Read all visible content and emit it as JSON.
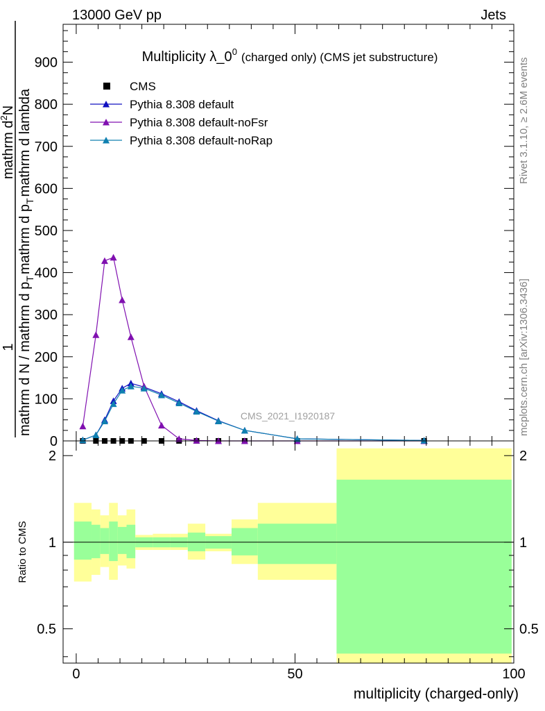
{
  "header": {
    "left": "13000 GeV pp",
    "right": "Jets"
  },
  "side_labels": {
    "top": "Rivet 3.1.10, ≥ 2.6M events",
    "bottom": "mcplots.cern.ch [arXiv:1306.3436]"
  },
  "colors": {
    "cms": "#000000",
    "default": "#1010c0",
    "noFsr": "#8010b0",
    "noRap": "#1080b0",
    "band_inner": "#99ff99",
    "band_outer": "#ffff99"
  },
  "chart_data": [
    {
      "type": "line",
      "title": "Multiplicity λ_0",
      "title_sup": "0",
      "title_suffix": "(charged only) (CMS jet substructure)",
      "ylabel_parts": [
        "1",
        "mathrm d N / mathrm d p",
        "T",
        "mathrm d p",
        "T",
        "mathrm d lambda",
        "mathrm d",
        "2",
        "N"
      ],
      "watermark": "CMS_2021_I1920187",
      "xlim": [
        -3,
        100
      ],
      "ylim": [
        0,
        990
      ],
      "yticks": [
        0,
        100,
        200,
        300,
        400,
        500,
        600,
        700,
        800,
        900
      ],
      "legend": "top-left",
      "x": [
        1.5,
        4.5,
        6.5,
        8.5,
        10.5,
        12.5,
        15.5,
        19.5,
        23.5,
        27.5,
        32.5,
        38.5,
        50.5,
        79.5
      ],
      "series": [
        {
          "name": "CMS",
          "marker": "square",
          "values": [
            0,
            0,
            0,
            0,
            0,
            0,
            0,
            0,
            0,
            0,
            0,
            0,
            0,
            0
          ]
        },
        {
          "name": "Pythia 8.308 default",
          "marker": "triangle",
          "values": [
            2,
            14,
            50,
            95,
            125,
            137,
            128,
            112,
            93,
            72,
            48,
            25,
            5,
            1
          ]
        },
        {
          "name": "Pythia 8.308 default-noFsr",
          "marker": "triangle",
          "values": [
            35,
            252,
            428,
            436,
            335,
            247,
            130,
            37,
            5,
            1,
            0,
            0,
            0,
            0
          ]
        },
        {
          "name": "Pythia 8.308 default-noRap",
          "marker": "triangle",
          "values": [
            2,
            14,
            47,
            88,
            120,
            130,
            125,
            109,
            90,
            70,
            47,
            25,
            5,
            1
          ]
        }
      ]
    },
    {
      "type": "area",
      "ylabel": "Ratio to CMS",
      "xlabel": "multiplicity (charged-only)",
      "xlim": [
        -3,
        100
      ],
      "ylim": [
        0.38,
        2.25
      ],
      "yticks": [
        0.5,
        1,
        2
      ],
      "ytick_labels": [
        "0.5",
        "1",
        "2"
      ],
      "xticks": [
        0,
        50,
        100
      ],
      "xtick_labels": [
        "0",
        "50",
        "100"
      ],
      "bins": [
        {
          "lo": -0.5,
          "hi": 3.5,
          "inner": [
            0.87,
            1.18
          ],
          "outer": [
            0.73,
            1.37
          ]
        },
        {
          "lo": 3.5,
          "hi": 5.5,
          "inner": [
            0.88,
            1.15
          ],
          "outer": [
            0.77,
            1.3
          ]
        },
        {
          "lo": 5.5,
          "hi": 7.5,
          "inner": [
            0.91,
            1.12
          ],
          "outer": [
            0.82,
            1.24
          ]
        },
        {
          "lo": 7.5,
          "hi": 9.5,
          "inner": [
            0.86,
            1.18
          ],
          "outer": [
            0.74,
            1.37
          ]
        },
        {
          "lo": 9.5,
          "hi": 11.5,
          "inner": [
            0.91,
            1.13
          ],
          "outer": [
            0.83,
            1.24
          ]
        },
        {
          "lo": 11.5,
          "hi": 13.5,
          "inner": [
            0.88,
            1.15
          ],
          "outer": [
            0.81,
            1.3
          ]
        },
        {
          "lo": 13.5,
          "hi": 17.5,
          "inner": [
            0.96,
            1.04
          ],
          "outer": [
            0.94,
            1.06
          ]
        },
        {
          "lo": 17.5,
          "hi": 21.5,
          "inner": [
            0.96,
            1.04
          ],
          "outer": [
            0.94,
            1.07
          ]
        },
        {
          "lo": 21.5,
          "hi": 25.5,
          "inner": [
            0.96,
            1.04
          ],
          "outer": [
            0.94,
            1.07
          ]
        },
        {
          "lo": 25.5,
          "hi": 29.5,
          "inner": [
            0.93,
            1.08
          ],
          "outer": [
            0.87,
            1.16
          ]
        },
        {
          "lo": 29.5,
          "hi": 35.5,
          "inner": [
            0.95,
            1.05
          ],
          "outer": [
            0.93,
            1.07
          ]
        },
        {
          "lo": 35.5,
          "hi": 41.5,
          "inner": [
            0.9,
            1.12
          ],
          "outer": [
            0.84,
            1.2
          ]
        },
        {
          "lo": 41.5,
          "hi": 59.5,
          "inner": [
            0.84,
            1.16
          ],
          "outer": [
            0.74,
            1.37
          ]
        },
        {
          "lo": 59.5,
          "hi": 99.5,
          "inner": [
            0.41,
            1.65
          ],
          "outer": [
            0.38,
            2.12
          ]
        }
      ]
    }
  ]
}
